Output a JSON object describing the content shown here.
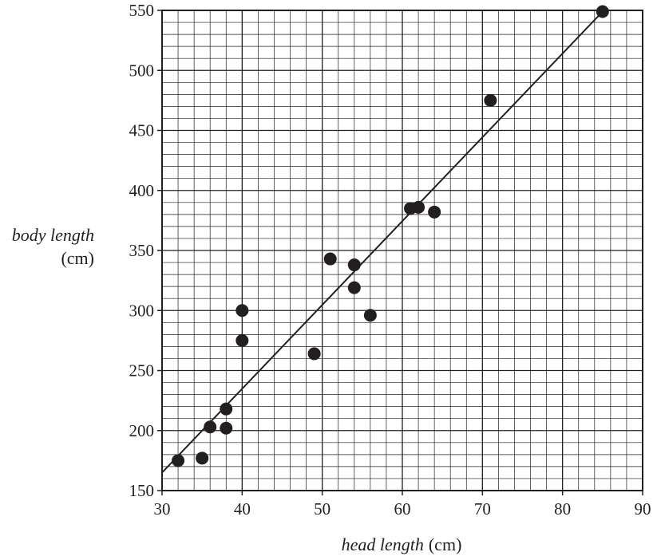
{
  "chart_data": {
    "type": "scatter",
    "title": "",
    "xlabel": {
      "main": "head length",
      "unit": "(cm)"
    },
    "ylabel": {
      "main": "body length",
      "unit": "(cm)"
    },
    "xlim": [
      30,
      90
    ],
    "ylim": [
      150,
      550
    ],
    "x_ticks": [
      30,
      40,
      50,
      60,
      70,
      80,
      90
    ],
    "y_ticks": [
      150,
      200,
      250,
      300,
      350,
      400,
      450,
      500,
      550
    ],
    "grid": true,
    "legend": "none",
    "points": [
      {
        "x": 32,
        "y": 175
      },
      {
        "x": 35,
        "y": 177
      },
      {
        "x": 36,
        "y": 203
      },
      {
        "x": 38,
        "y": 202
      },
      {
        "x": 38,
        "y": 218
      },
      {
        "x": 40,
        "y": 275
      },
      {
        "x": 40,
        "y": 300
      },
      {
        "x": 49,
        "y": 264
      },
      {
        "x": 51,
        "y": 343
      },
      {
        "x": 54,
        "y": 338
      },
      {
        "x": 54,
        "y": 319
      },
      {
        "x": 56,
        "y": 296
      },
      {
        "x": 61,
        "y": 385
      },
      {
        "x": 62,
        "y": 386
      },
      {
        "x": 64,
        "y": 382
      },
      {
        "x": 71,
        "y": 475
      },
      {
        "x": 85,
        "y": 549
      }
    ],
    "trend_line": {
      "from": {
        "x": 30,
        "y": 165
      },
      "to": {
        "x": 85,
        "y": 549
      }
    },
    "colors": {
      "ink": "#231f20",
      "grid": "#231f20",
      "background": "#ffffff"
    }
  }
}
